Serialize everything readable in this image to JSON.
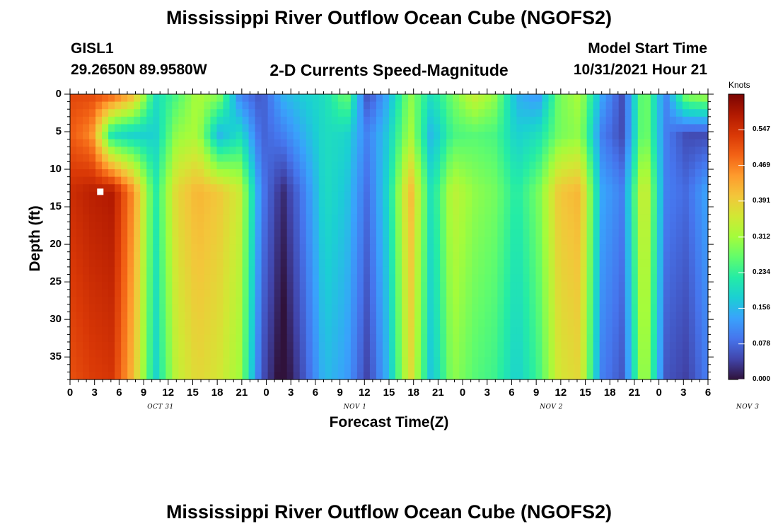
{
  "page": {
    "title": "Mississippi River Outflow Ocean Cube (NGOFS2)",
    "title_bottom": "Mississippi River Outflow Ocean Cube (NGOFS2)",
    "station_id": "GISL1",
    "station_coords": "29.2650N  89.9580W",
    "plot_subtitle": "2-D Currents Speed-Magnitude",
    "model_start_label": "Model Start Time",
    "model_start_value": "10/31/2021 Hour 21"
  },
  "colors": {
    "colormap": [
      "#30123b",
      "#4145ab",
      "#4675ed",
      "#39a2fc",
      "#1bcfd4",
      "#24eca6",
      "#61fc6c",
      "#a4fc3b",
      "#d1e834",
      "#f3c63a",
      "#fe9b2d",
      "#f36315",
      "#d93806",
      "#b11901",
      "#7a0402"
    ]
  },
  "chart_data": {
    "type": "heatmap",
    "xlabel": "Forecast Time(Z)",
    "ylabel": "Depth (ft)",
    "x_tick_labels": [
      "0",
      "3",
      "6",
      "9",
      "12",
      "15",
      "18",
      "21",
      "0",
      "3",
      "6",
      "9",
      "12",
      "15",
      "18",
      "21",
      "0",
      "3",
      "6",
      "9",
      "12",
      "15",
      "18",
      "21",
      "0",
      "3",
      "6"
    ],
    "date_labels": [
      {
        "text": "OCT 31",
        "hour": 11
      },
      {
        "text": "NOV 1",
        "hour": 35
      },
      {
        "text": "NOV 2",
        "hour": 59
      },
      {
        "text": "NOV 3",
        "hour": 83
      }
    ],
    "y_ticks": [
      0,
      5,
      10,
      15,
      20,
      25,
      30,
      35
    ],
    "ylim": [
      0,
      38
    ],
    "xlim_hours": [
      0,
      78
    ],
    "colorbar": {
      "title": "Knots",
      "tick_values": [
        0.0,
        0.078,
        0.156,
        0.234,
        0.312,
        0.391,
        0.469,
        0.547
      ],
      "tick_labels": [
        "0.000",
        "0.078",
        "0.156",
        "0.234",
        "0.312",
        "0.391",
        "0.469",
        "0.547"
      ],
      "vmax": 0.625
    },
    "marker": {
      "hour": 3.7,
      "depth_ft": 13
    },
    "surface_speed_knots": [
      0.52,
      0.52,
      0.5,
      0.42,
      0.2,
      0.25,
      0.32,
      0.3,
      0.1,
      0.06,
      0.15,
      0.18,
      0.2,
      0.28,
      0.05,
      0.15,
      0.3,
      0.2,
      0.28,
      0.35,
      0.3,
      0.15,
      0.12,
      0.28,
      0.32,
      0.14,
      0.05,
      0.3,
      0.1,
      0.3,
      0.32
    ],
    "mid_speed_knots": [
      0.5,
      0.46,
      0.2,
      0.18,
      0.18,
      0.3,
      0.32,
      0.15,
      0.2,
      0.07,
      0.1,
      0.15,
      0.2,
      0.19,
      0.1,
      0.18,
      0.32,
      0.15,
      0.25,
      0.26,
      0.25,
      0.18,
      0.2,
      0.28,
      0.3,
      0.1,
      0.05,
      0.3,
      0.1,
      0.05,
      0.05
    ],
    "deep_speed_knots": [
      0.55,
      0.57,
      0.58,
      0.45,
      0.22,
      0.38,
      0.42,
      0.4,
      0.35,
      0.1,
      0.02,
      0.1,
      0.2,
      0.17,
      0.08,
      0.2,
      0.42,
      0.2,
      0.34,
      0.3,
      0.28,
      0.22,
      0.28,
      0.4,
      0.42,
      0.14,
      0.1,
      0.38,
      0.1,
      0.08,
      0.14
    ]
  }
}
